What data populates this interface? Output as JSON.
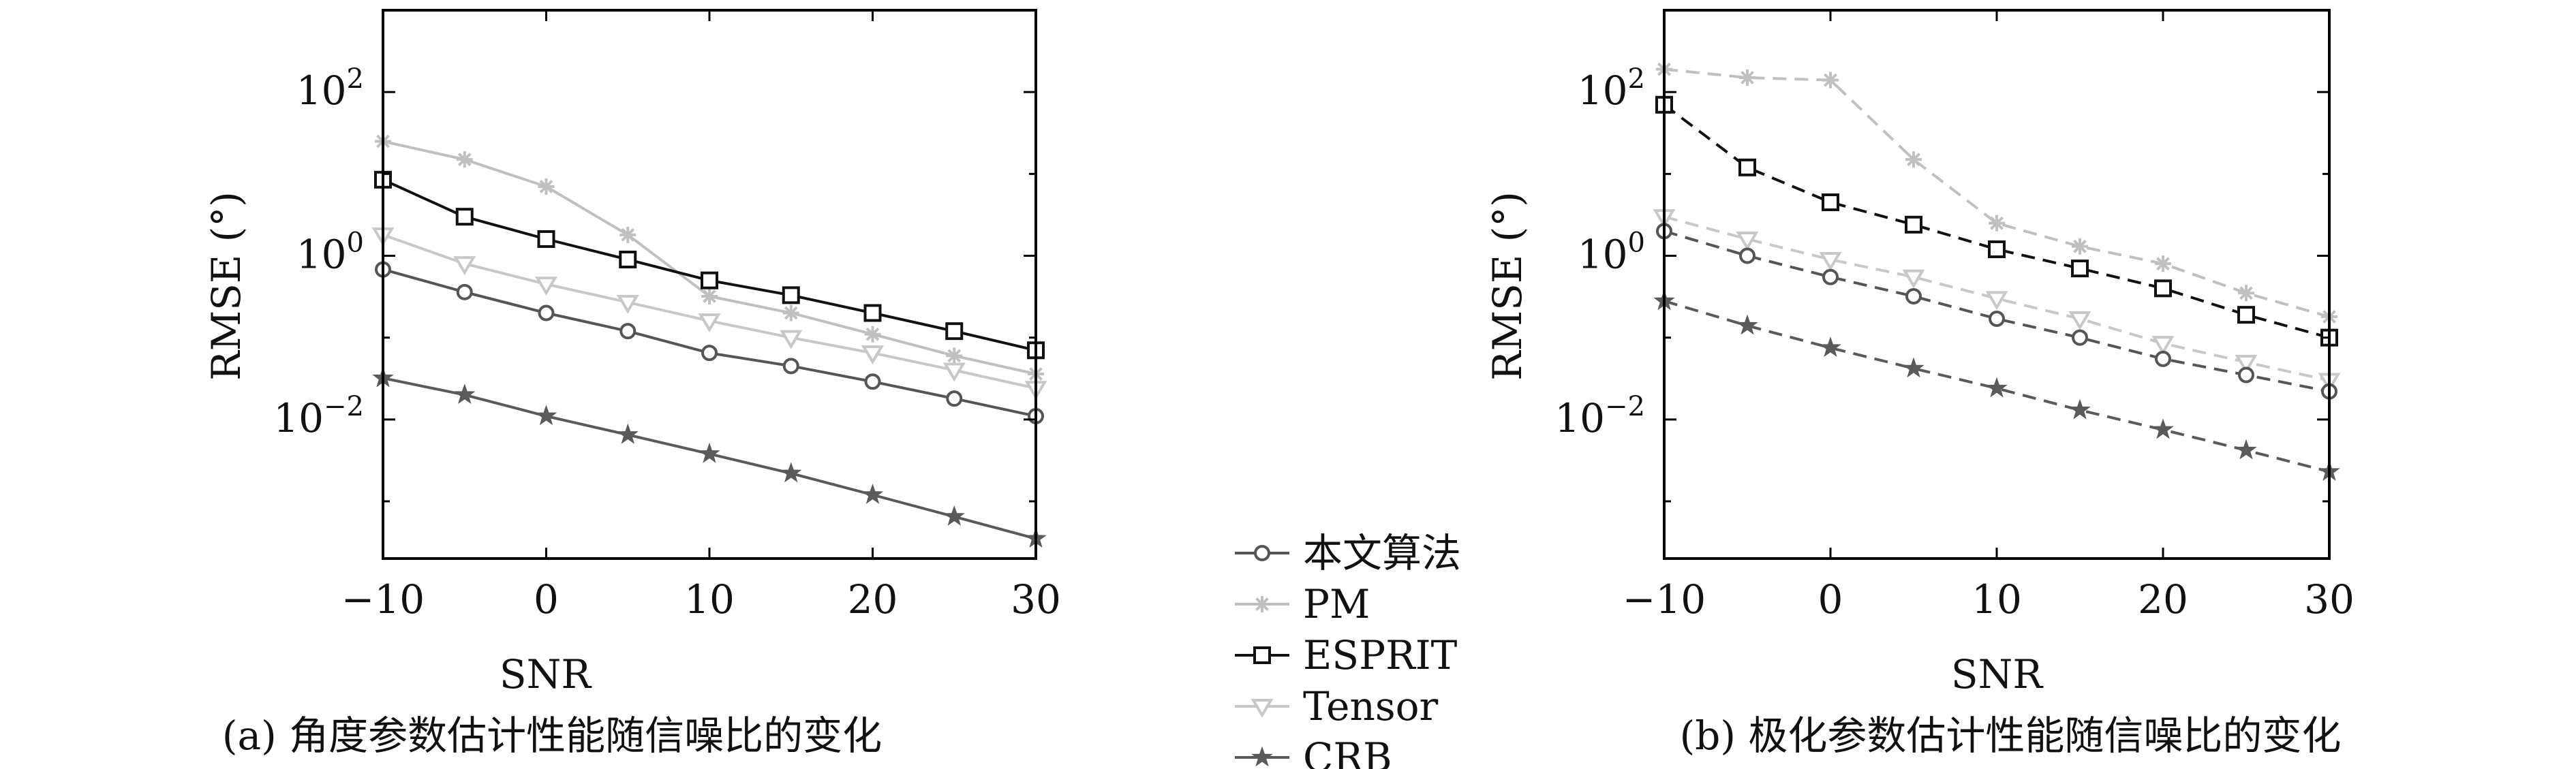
{
  "chart_data": [
    {
      "type": "line",
      "caption": "(a) 角度参数估计性能随信噪比的变化",
      "xlabel": "SNR",
      "ylabel": "RMSE (°)",
      "yscale": "log",
      "xlim": [
        -10,
        30
      ],
      "ylim": [
        0.0002,
        1000
      ],
      "x": [
        -10,
        -5,
        0,
        5,
        10,
        15,
        20,
        25,
        30
      ],
      "xticks": [
        "−10",
        "0",
        "10",
        "20",
        "30"
      ],
      "xtick_values": [
        -10,
        0,
        10,
        20,
        30
      ],
      "yticks": [
        {
          "value": 100,
          "base": "10",
          "exp": "2"
        },
        {
          "value": 1,
          "base": "10",
          "exp": "0"
        },
        {
          "value": 0.01,
          "base": "10",
          "exp": "−2"
        }
      ],
      "grid": false,
      "line_style": "solid",
      "series": [
        {
          "name": "PM",
          "values": [
            25,
            15,
            7,
            1.8,
            0.32,
            0.2,
            0.11,
            0.06,
            0.036
          ]
        },
        {
          "name": "ESPRIT",
          "values": [
            8.5,
            3,
            1.6,
            0.9,
            0.5,
            0.33,
            0.2,
            0.12,
            0.07
          ]
        },
        {
          "name": "Tensor",
          "values": [
            1.8,
            0.8,
            0.45,
            0.27,
            0.16,
            0.1,
            0.065,
            0.04,
            0.024
          ]
        },
        {
          "name": "本文算法",
          "values": [
            0.68,
            0.36,
            0.2,
            0.12,
            0.065,
            0.045,
            0.029,
            0.018,
            0.011
          ]
        },
        {
          "name": "CRB",
          "values": [
            0.032,
            0.02,
            0.011,
            0.0065,
            0.0038,
            0.0022,
            0.0012,
            0.00065,
            0.00035
          ]
        }
      ]
    },
    {
      "type": "line",
      "caption": "(b) 极化参数估计性能随信噪比的变化",
      "xlabel": "SNR",
      "ylabel": "RMSE (°)",
      "yscale": "log",
      "xlim": [
        -10,
        30
      ],
      "ylim": [
        0.0002,
        1000
      ],
      "x": [
        -10,
        -5,
        0,
        5,
        10,
        15,
        20,
        25,
        30
      ],
      "xticks": [
        "−10",
        "0",
        "10",
        "20",
        "30"
      ],
      "xtick_values": [
        -10,
        0,
        10,
        20,
        30
      ],
      "yticks": [
        {
          "value": 100,
          "base": "10",
          "exp": "2"
        },
        {
          "value": 1,
          "base": "10",
          "exp": "0"
        },
        {
          "value": 0.01,
          "base": "10",
          "exp": "−2"
        }
      ],
      "grid": false,
      "line_style": "dashed",
      "series": [
        {
          "name": "PM",
          "values": [
            190,
            150,
            140,
            15,
            2.5,
            1.3,
            0.8,
            0.35,
            0.18
          ]
        },
        {
          "name": "ESPRIT",
          "values": [
            70,
            12,
            4.5,
            2.4,
            1.2,
            0.7,
            0.4,
            0.19,
            0.1
          ]
        },
        {
          "name": "Tensor",
          "values": [
            3,
            1.6,
            0.9,
            0.55,
            0.3,
            0.17,
            0.085,
            0.05,
            0.03
          ]
        },
        {
          "name": "本文算法",
          "values": [
            2,
            1,
            0.55,
            0.32,
            0.17,
            0.1,
            0.055,
            0.035,
            0.022
          ]
        },
        {
          "name": "CRB",
          "values": [
            0.28,
            0.14,
            0.075,
            0.042,
            0.024,
            0.013,
            0.0075,
            0.0042,
            0.0023
          ]
        }
      ]
    }
  ],
  "legend": {
    "placement": "between-panels",
    "items": [
      {
        "label": "本文算法",
        "marker": "circle",
        "color": "#555555"
      },
      {
        "label": "PM",
        "marker": "asterisk",
        "color": "#c0c0c0"
      },
      {
        "label": "ESPRIT",
        "marker": "square",
        "color": "#111111"
      },
      {
        "label": "Tensor",
        "marker": "triangle-down",
        "color": "#c8c8c8"
      },
      {
        "label": "CRB",
        "marker": "star",
        "color": "#5a5a5a"
      }
    ]
  },
  "series_style": {
    "本文算法": {
      "color": "#555555",
      "marker": "circle"
    },
    "PM": {
      "color": "#c0c0c0",
      "marker": "asterisk"
    },
    "ESPRIT": {
      "color": "#111111",
      "marker": "square"
    },
    "Tensor": {
      "color": "#c8c8c8",
      "marker": "triangle-down"
    },
    "CRB": {
      "color": "#5a5a5a",
      "marker": "star"
    }
  }
}
